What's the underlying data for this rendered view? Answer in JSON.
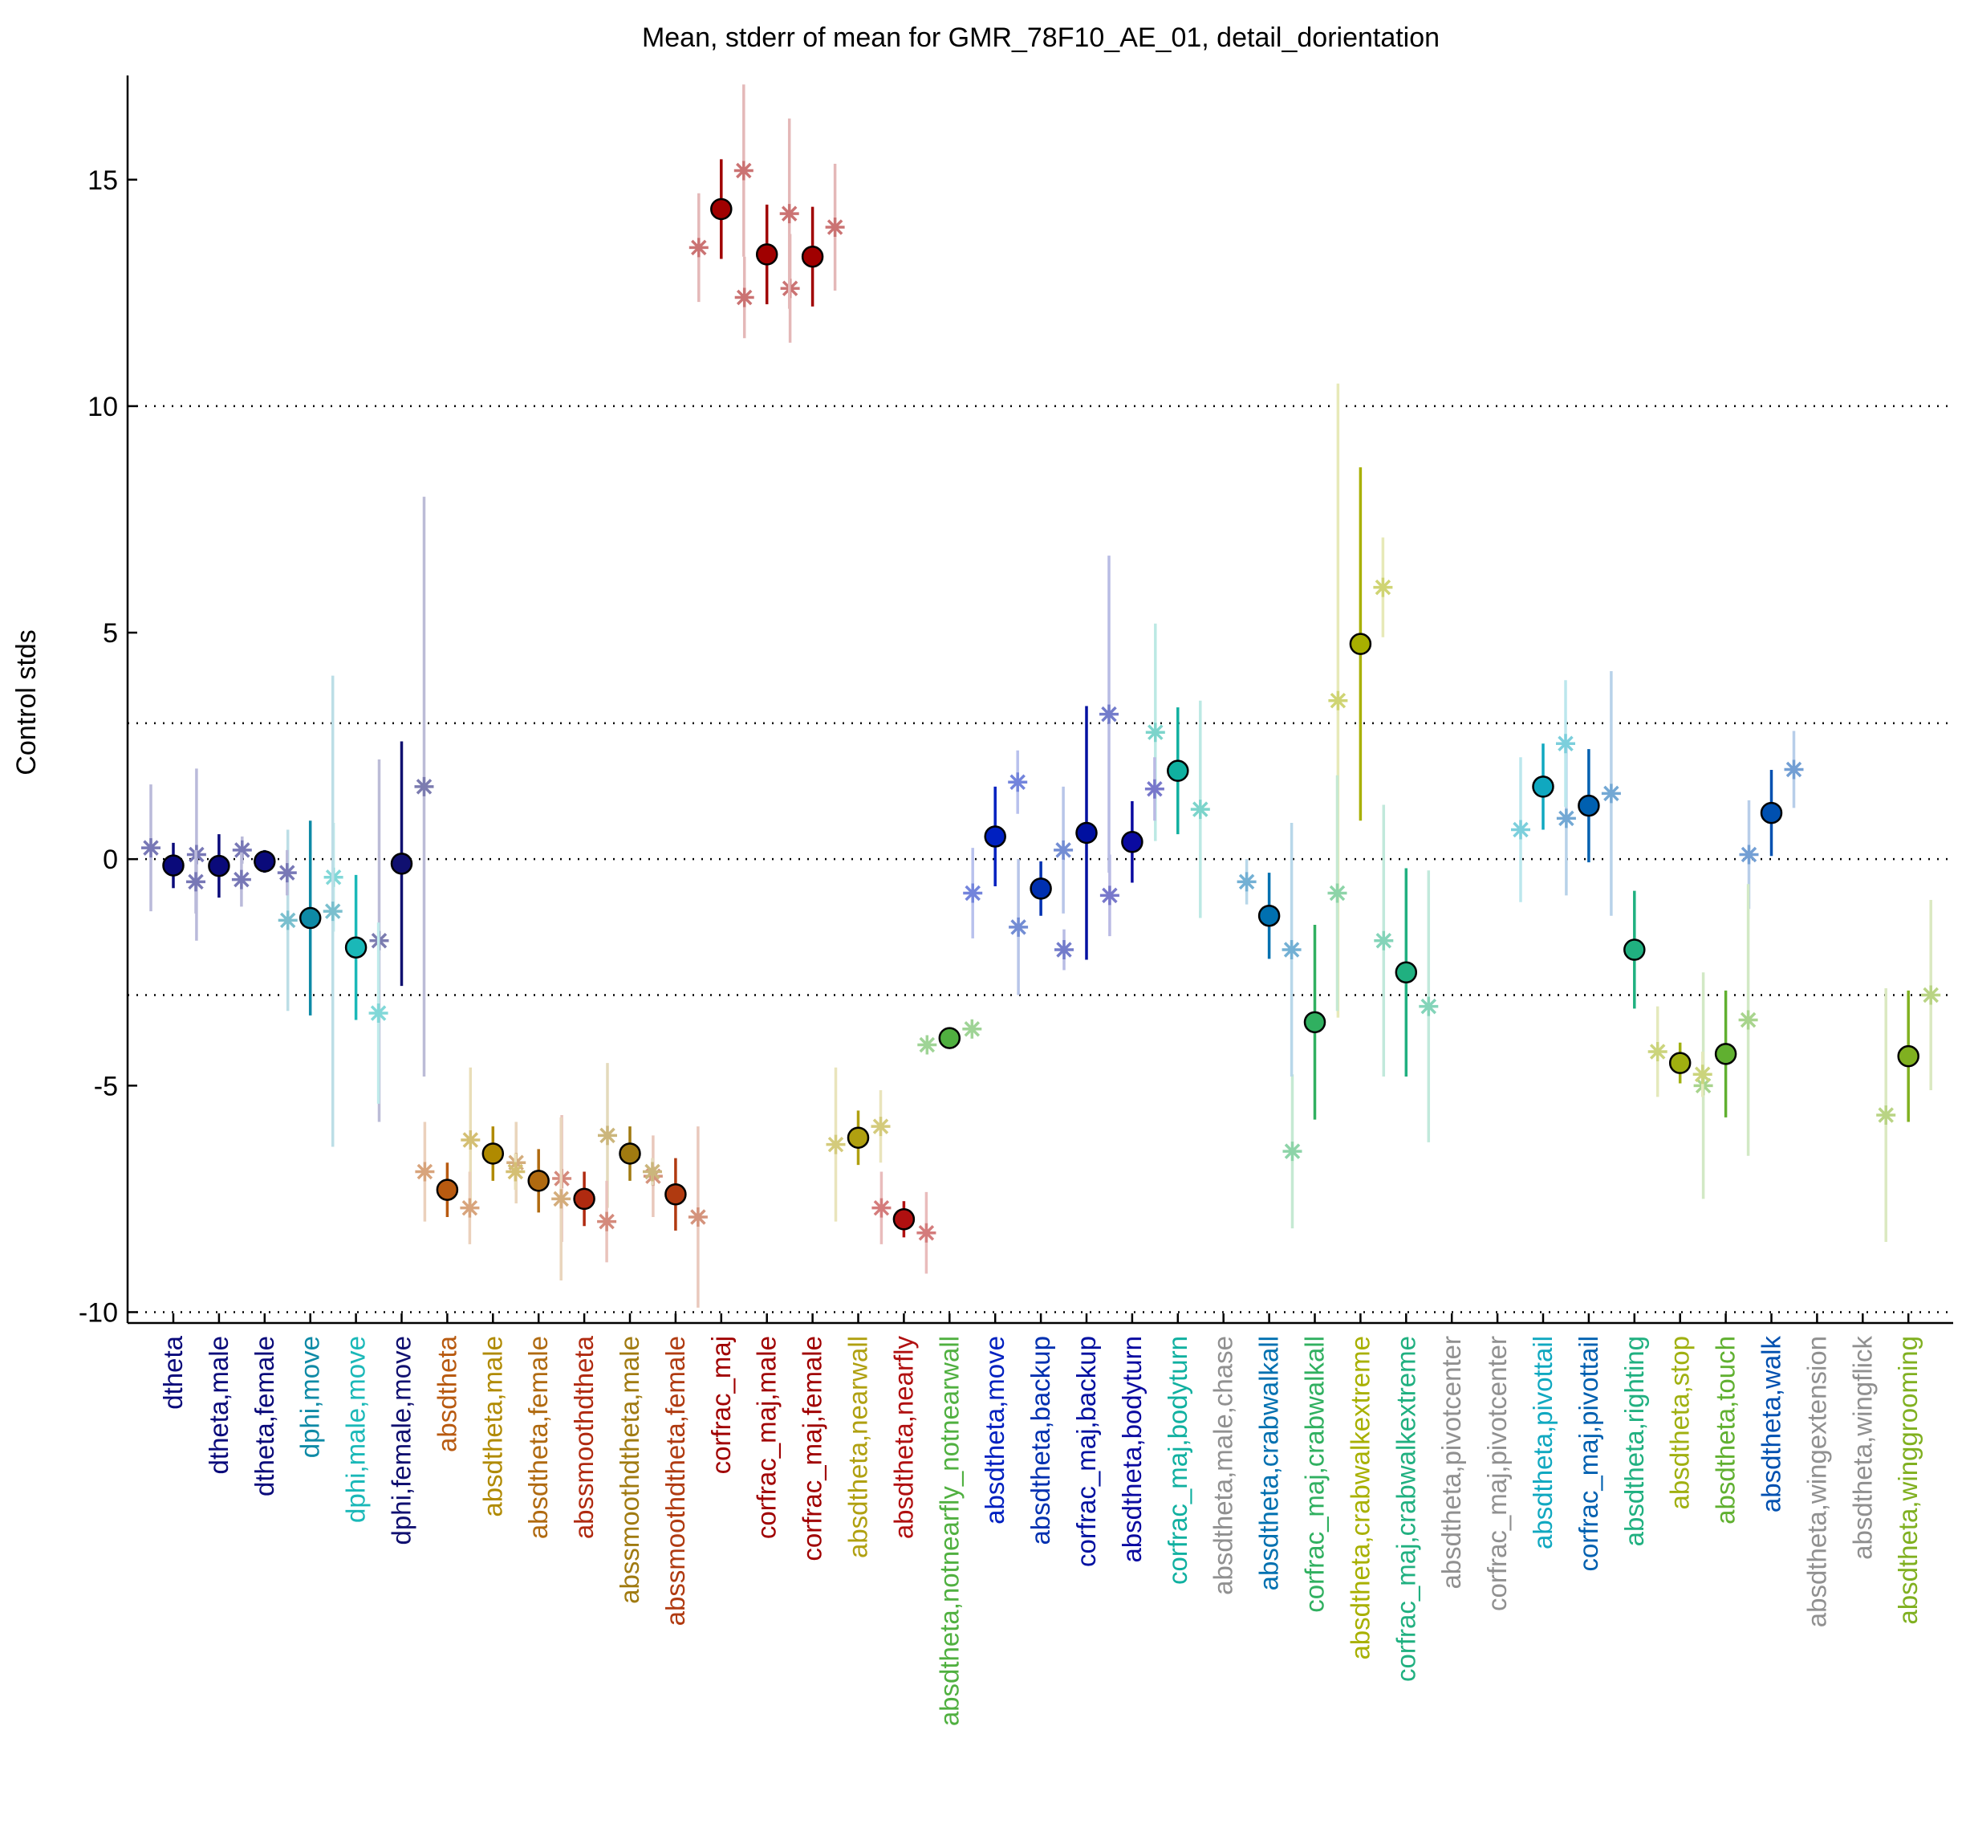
{
  "chart_data": {
    "type": "errorbar",
    "title": "Mean, stderr of mean for GMR_78F10_AE_01, detail_dorientation",
    "ylabel": "Control stds",
    "ylim": [
      -10.24,
      17.3
    ],
    "yticks": [
      -10,
      -5,
      0,
      5,
      10,
      15
    ],
    "hlines": [
      10,
      3,
      0,
      -3,
      -10
    ],
    "categories": [
      "dtheta",
      "dtheta,male",
      "dtheta,female",
      "dphi,move",
      "dphi,male,move",
      "dphi,female,move",
      "absdtheta",
      "absdtheta,male",
      "absdtheta,female",
      "abssmoothdtheta",
      "abssmoothdtheta,male",
      "abssmoothdtheta,female",
      "corfrac_maj",
      "corfrac_maj,male",
      "corfrac_maj,female",
      "absdtheta,nearwall",
      "absdtheta,nearfly",
      "absdtheta,notnearfly_notnearwall",
      "absdtheta,move",
      "absdtheta,backup",
      "corfrac_maj,backup",
      "absdtheta,bodyturn",
      "corfrac_maj,bodyturn",
      "absdtheta,male,chase",
      "absdtheta,crabwalkall",
      "corfrac_maj,crabwalkall",
      "absdtheta,crabwalkextreme",
      "corfrac_maj,crabwalkextreme",
      "absdtheta,pivotcenter",
      "corfrac_maj,pivotcenter",
      "absdtheta,pivottail",
      "corfrac_maj,pivottail",
      "absdtheta,righting",
      "absdtheta,stop",
      "absdtheta,touch",
      "absdtheta,walk",
      "absdtheta,wingextension",
      "absdtheta,wingflick",
      "absdtheta,winggrooming"
    ],
    "colors": [
      "#0a0a7a",
      "#0a0a7a",
      "#0a0a7a",
      "#0e8aa6",
      "#1ab8b8",
      "#101070",
      "#b85a10",
      "#b08a00",
      "#b06a10",
      "#b02a10",
      "#a07a10",
      "#b03a10",
      "#a00000",
      "#a00000",
      "#a00000",
      "#b0a010",
      "#b01010",
      "#50b040",
      "#0020c0",
      "#0030b0",
      "#0010a0",
      "#0a0aa0",
      "#10b0a0",
      "#909090",
      "#0070b0",
      "#30b060",
      "#a8b000",
      "#20b080",
      "#909090",
      "#909090",
      "#10a8c0",
      "#0060b0",
      "#20b080",
      "#a0b010",
      "#60b030",
      "#0050b0",
      "#909090",
      "#909090",
      "#80b020"
    ],
    "series": [
      {
        "marker": "circle",
        "values": [
          -0.14,
          -0.15,
          -0.05,
          -1.3,
          -1.95,
          -0.1,
          -7.3,
          -6.5,
          -7.1,
          -7.5,
          -6.5,
          -7.4,
          14.35,
          13.35,
          13.3,
          -6.15,
          -7.95,
          -3.95,
          0.5,
          -0.65,
          0.58,
          0.38,
          1.95,
          null,
          -1.25,
          -3.6,
          4.75,
          -2.5,
          null,
          null,
          1.6,
          1.18,
          -2.0,
          -4.5,
          -4.3,
          1.02,
          null,
          null,
          -4.35
        ],
        "errors": [
          0.5,
          0.7,
          0.25,
          2.15,
          1.6,
          2.7,
          0.6,
          0.6,
          0.7,
          0.6,
          0.6,
          0.8,
          1.1,
          1.1,
          1.1,
          0.6,
          0.4,
          0.1,
          1.1,
          0.6,
          2.8,
          0.9,
          1.4,
          null,
          0.95,
          2.15,
          3.9,
          2.3,
          null,
          null,
          0.95,
          1.25,
          1.3,
          0.45,
          1.4,
          0.95,
          null,
          null,
          1.45
        ]
      },
      {
        "marker": "asterisk",
        "values": [
          0.25,
          0.1,
          0.2,
          -1.35,
          -0.4,
          -1.8,
          -6.9,
          -6.2,
          -6.7,
          -7.05,
          -6.1,
          -7.0,
          13.5,
          12.4,
          12.6,
          -6.3,
          -7.7,
          -4.1,
          -0.75,
          -1.5,
          -2.0,
          -0.8,
          2.8,
          null,
          -0.5,
          -6.45,
          3.5,
          -1.8,
          null,
          null,
          0.65,
          0.9,
          null,
          -4.25,
          -5.0,
          0.1,
          null,
          null,
          -5.65
        ],
        "errors": [
          1.4,
          1.9,
          0.3,
          2.0,
          1.2,
          4.0,
          1.1,
          1.6,
          0.9,
          1.4,
          1.6,
          0.9,
          1.2,
          0.9,
          1.2,
          1.7,
          0.8,
          0.1,
          1.0,
          1.5,
          0.45,
          0.9,
          2.4,
          null,
          0.5,
          1.7,
          7.0,
          3.0,
          null,
          null,
          1.6,
          1.7,
          null,
          1.0,
          2.5,
          1.2,
          null,
          null,
          2.8
        ]
      },
      {
        "marker": "asterisk",
        "values": [
          -0.5,
          -0.45,
          -0.3,
          -1.15,
          -3.4,
          1.6,
          -7.7,
          -6.9,
          -7.5,
          -8.0,
          -6.9,
          -7.9,
          15.2,
          14.25,
          13.95,
          -5.9,
          -8.25,
          -3.75,
          1.7,
          0.2,
          3.2,
          1.55,
          1.1,
          null,
          -2.0,
          -0.75,
          6.0,
          -3.25,
          null,
          null,
          2.55,
          1.45,
          null,
          -4.75,
          -3.55,
          1.98,
          null,
          null,
          -3.0
        ],
        "errors": [
          0.7,
          0.6,
          0.5,
          5.2,
          2.0,
          6.4,
          0.8,
          0.4,
          1.8,
          0.9,
          0.3,
          2.0,
          1.9,
          2.1,
          1.4,
          0.8,
          0.9,
          0.1,
          0.7,
          1.4,
          3.5,
          0.7,
          2.4,
          null,
          2.8,
          2.6,
          1.1,
          3.0,
          null,
          null,
          1.4,
          2.7,
          null,
          0.5,
          3.0,
          0.85,
          null,
          null,
          2.1
        ]
      }
    ]
  }
}
